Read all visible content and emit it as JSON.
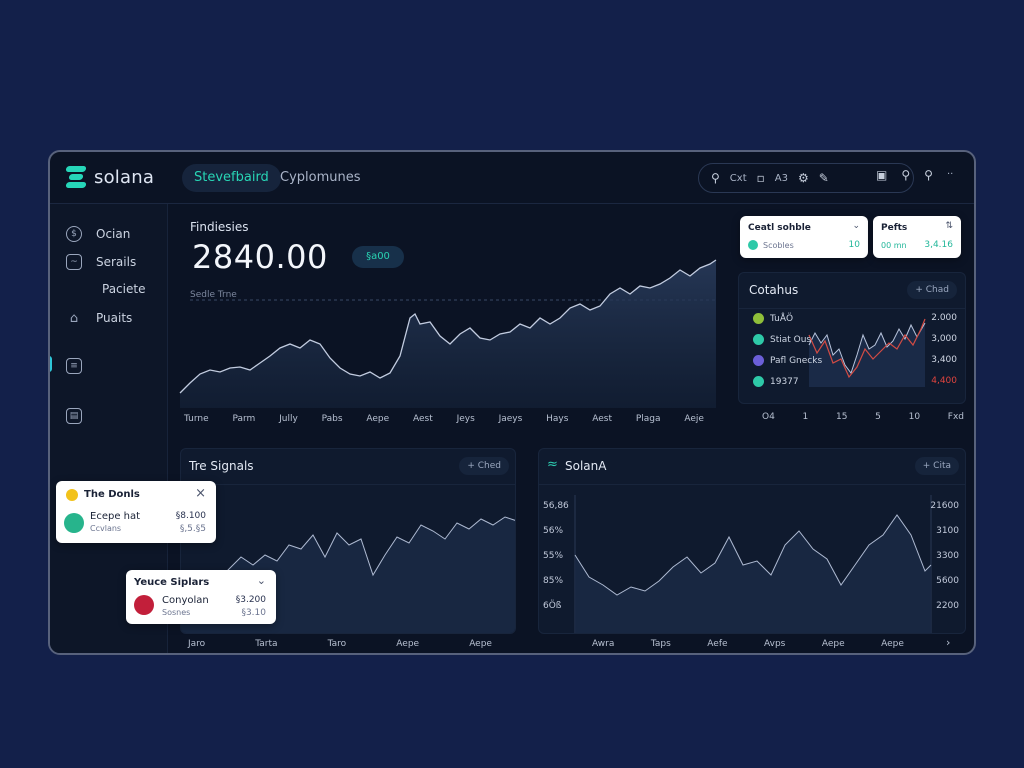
{
  "app": {
    "logo_text": "solana"
  },
  "topbar": {
    "tabs": [
      {
        "label": "Stevefbaird"
      },
      {
        "label": "Cyplomunes"
      }
    ],
    "pill_texts": [
      "Cxt",
      "A3"
    ],
    "icons": [
      "search-icon",
      "lock-icon",
      "settings-icon",
      "edit-icon",
      "calendar-icon",
      "search-icon",
      "search-icon",
      "more-icon"
    ]
  },
  "sidebar": {
    "items": [
      {
        "label": "Ocian",
        "icon": "coin-icon"
      },
      {
        "label": "Serails",
        "icon": "chart-icon"
      },
      {
        "label": "Paciete",
        "icon": ""
      },
      {
        "label": "Puaits",
        "icon": "home-icon"
      },
      {
        "label": "",
        "icon": "calculator-icon"
      },
      {
        "label": "",
        "icon": "file-icon"
      }
    ]
  },
  "main_chart": {
    "title": "Findiesies",
    "value": "2840.00",
    "badge": "§a00",
    "sub_label": "Sedle Trne",
    "x_labels": [
      "Turne",
      "Parm",
      "Jully",
      "Pabs",
      "Aepe",
      "Aest",
      "Jeys",
      "Jaeys",
      "Hays",
      "Aest",
      "Plaga",
      "Aeje"
    ]
  },
  "filter_cards": [
    {
      "title": "Ceatl sohble",
      "label": "Scobles",
      "value": "10"
    },
    {
      "title": "Pefts",
      "label": "00 mn",
      "value": "3,4.16"
    }
  ],
  "side_chart": {
    "title": "Cotahus",
    "chip": "+ Chad",
    "legend": [
      {
        "label": "TuÅÖ",
        "color": "#8fbf3a"
      },
      {
        "label": "Stiat Ous",
        "color": "#2ec9a8"
      },
      {
        "label": "Pafl Gnecks",
        "color": "#6b5fd8"
      },
      {
        "label": "19377",
        "color": "#2ec9a8"
      }
    ],
    "y_labels": [
      {
        "text": "2.000",
        "color": "#d3dae7"
      },
      {
        "text": "3,000",
        "color": "#d3dae7"
      },
      {
        "text": "3,400",
        "color": "#d3dae7"
      },
      {
        "text": "4,400",
        "color": "#e0443e"
      }
    ],
    "x_labels": [
      "O4",
      "1",
      "15",
      "5",
      "10",
      "Fxd"
    ]
  },
  "signals_chart": {
    "title": "Tre Signals",
    "chip": "+ Ched",
    "x_labels": [
      "Jaro",
      "Tarta",
      "Taro",
      "Aepe",
      "Aepe"
    ]
  },
  "solana_chart": {
    "title": "SolanA",
    "chip": "+ Cita",
    "y_left": [
      "56,86",
      "56%",
      "55%",
      "85%",
      "6Öß"
    ],
    "y_right": [
      "21600",
      "3100",
      "3300",
      "5600",
      "2200"
    ],
    "x_labels": [
      "Awra",
      "Taps",
      "Aefe",
      "Avps",
      "Aepe",
      "Aepe"
    ]
  },
  "popups": [
    {
      "title": "The Donls",
      "name": "Ecepe hat",
      "sub": "Ccvlans",
      "v1": "§8.100",
      "v2": "§,5.§5"
    },
    {
      "title": "Yeuce Siplars",
      "name": "Conyolan",
      "sub": "Sosnes",
      "v1": "§3.200",
      "v2": "§3.10"
    }
  ],
  "colors": {
    "accent": "#28d5b5",
    "background": "#13204a",
    "window": "#0b1324",
    "line": "#b8c4dc",
    "red_line": "#d24b44"
  }
}
